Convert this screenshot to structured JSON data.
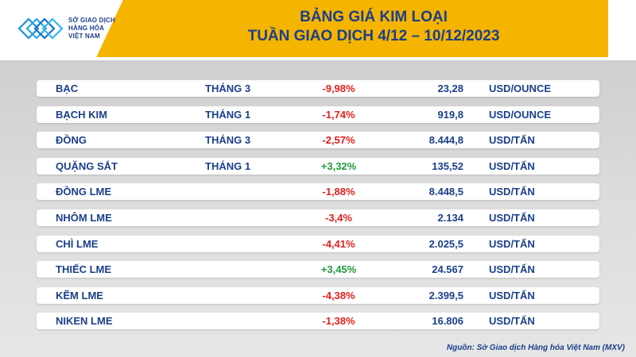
{
  "header": {
    "logo_lines": [
      "SỞ GIAO DỊCH",
      "HÀNG HÓA",
      "VIỆT NAM"
    ],
    "title_line1": "BẢNG GIÁ KIM LOẠI",
    "title_line2": "TUẦN GIAO DỊCH 4/12 – 10/12/2023"
  },
  "colors": {
    "accent": "#f5b400",
    "text": "#1b3f8b",
    "negative": "#e0201b",
    "positive": "#1f9a3a"
  },
  "rows": [
    {
      "name": "BẠC",
      "month": "THÁNG 3",
      "change": "-9,98%",
      "trend": "neg",
      "price": "23,28",
      "unit": "USD/OUNCE"
    },
    {
      "name": "BẠCH KIM",
      "month": "THÁNG 1",
      "change": "-1,74%",
      "trend": "neg",
      "price": "919,8",
      "unit": "USD/OUNCE"
    },
    {
      "name": "ĐỒNG",
      "month": "THÁNG 3",
      "change": "-2,57%",
      "trend": "neg",
      "price": "8.444,8",
      "unit": "USD/TẤN"
    },
    {
      "name": "QUẶNG SẮT",
      "month": "THÁNG 1",
      "change": "+3,32%",
      "trend": "pos",
      "price": "135,52",
      "unit": "USD/TẤN"
    },
    {
      "name": "ĐỒNG LME",
      "month": "",
      "change": "-1,88%",
      "trend": "neg",
      "price": "8.448,5",
      "unit": "USD/TẤN"
    },
    {
      "name": "NHÔM LME",
      "month": "",
      "change": "-3,4%",
      "trend": "neg",
      "price": "2.134",
      "unit": "USD/TẤN"
    },
    {
      "name": "CHÌ LME",
      "month": "",
      "change": "-4,41%",
      "trend": "neg",
      "price": "2.025,5",
      "unit": "USD/TẤN"
    },
    {
      "name": "THIẾC LME",
      "month": "",
      "change": "+3,45%",
      "trend": "pos",
      "price": "24.567",
      "unit": "USD/TẤN"
    },
    {
      "name": "KẼM LME",
      "month": "",
      "change": "-4,38%",
      "trend": "neg",
      "price": "2.399,5",
      "unit": "USD/TẤN"
    },
    {
      "name": "NIKEN LME",
      "month": "",
      "change": "-1,38%",
      "trend": "neg",
      "price": "16.806",
      "unit": "USD/TẤN"
    }
  ],
  "source": "Nguồn: Sở Giao dịch Hàng hóa Việt Nam (MXV)"
}
